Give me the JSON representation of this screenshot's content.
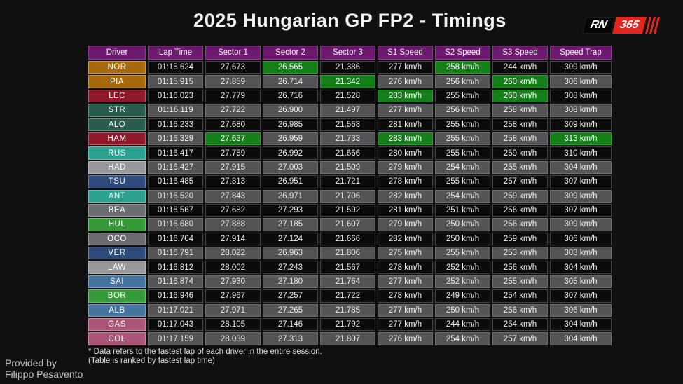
{
  "title": "2025 Hungarian GP FP2 - Timings",
  "logo": {
    "left_text": "RN",
    "right_text": "365",
    "accent_color": "#E2261F"
  },
  "footnote": {
    "line1": "* Data refers to the fastest lap of each driver in the entire session.",
    "line2": "(Table is ranked by fastest lap time)"
  },
  "credit": {
    "line1": "Provided by",
    "line2": "Filippo Pesavento"
  },
  "colors": {
    "background": "#101011",
    "header_purple": "#6D1A70",
    "row_dark": "#0B0B0C",
    "row_gray": "#545457",
    "best_green": "#15801A"
  },
  "chart_data": {
    "type": "table",
    "title": "2025 Hungarian GP FP2 - Timings",
    "columns": [
      "Driver",
      "Lap Time",
      "Sector 1",
      "Sector 2",
      "Sector 3",
      "S1 Speed",
      "S2 Speed",
      "S3 Speed",
      "Speed Trap"
    ],
    "column_keys": [
      "lap-time",
      "sector-1",
      "sector-2",
      "sector-3",
      "s1-speed",
      "s2-speed",
      "s3-speed",
      "speed-trap"
    ],
    "best_highlight_color": "#15801A",
    "rows": [
      {
        "driver": "NOR",
        "team_color": "#A8690A",
        "values": [
          "01:15.624",
          "27.673",
          "26.565",
          "21.386",
          "277 km/h",
          "258 km/h",
          "244 km/h",
          "309 km/h"
        ],
        "best_cells": [
          2,
          5
        ]
      },
      {
        "driver": "PIA",
        "team_color": "#A8690A",
        "values": [
          "01:15.915",
          "27.859",
          "26.714",
          "21.342",
          "276 km/h",
          "256 km/h",
          "260 km/h",
          "306 km/h"
        ],
        "best_cells": [
          3,
          6
        ]
      },
      {
        "driver": "LEC",
        "team_color": "#91172A",
        "values": [
          "01:16.023",
          "27.779",
          "26.716",
          "21.528",
          "283 km/h",
          "255 km/h",
          "260 km/h",
          "308 km/h"
        ],
        "best_cells": [
          4,
          6
        ]
      },
      {
        "driver": "STR",
        "team_color": "#285C4D",
        "values": [
          "01:16.119",
          "27.722",
          "26.900",
          "21.497",
          "277 km/h",
          "256 km/h",
          "258 km/h",
          "308 km/h"
        ],
        "best_cells": []
      },
      {
        "driver": "ALO",
        "team_color": "#285C4D",
        "values": [
          "01:16.233",
          "27.680",
          "26.985",
          "21.568",
          "281 km/h",
          "255 km/h",
          "258 km/h",
          "309 km/h"
        ],
        "best_cells": []
      },
      {
        "driver": "HAM",
        "team_color": "#91172A",
        "values": [
          "01:16.329",
          "27.637",
          "26.959",
          "21.733",
          "283 km/h",
          "255 km/h",
          "258 km/h",
          "313 km/h"
        ],
        "best_cells": [
          1,
          4,
          7
        ]
      },
      {
        "driver": "RUS",
        "team_color": "#2BA18F",
        "values": [
          "01:16.417",
          "27.759",
          "26.992",
          "21.666",
          "280 km/h",
          "255 km/h",
          "259 km/h",
          "310 km/h"
        ],
        "best_cells": []
      },
      {
        "driver": "HAD",
        "team_color": "#98989A",
        "values": [
          "01:16.427",
          "27.915",
          "27.003",
          "21.509",
          "279 km/h",
          "254 km/h",
          "255 km/h",
          "304 km/h"
        ],
        "best_cells": []
      },
      {
        "driver": "TSU",
        "team_color": "#2F4B7C",
        "values": [
          "01:16.485",
          "27.813",
          "26.951",
          "21.721",
          "278 km/h",
          "255 km/h",
          "257 km/h",
          "307 km/h"
        ],
        "best_cells": []
      },
      {
        "driver": "ANT",
        "team_color": "#2BA18F",
        "values": [
          "01:16.520",
          "27.843",
          "26.971",
          "21.706",
          "282 km/h",
          "254 km/h",
          "259 km/h",
          "309 km/h"
        ],
        "best_cells": []
      },
      {
        "driver": "BEA",
        "team_color": "#6B6D70",
        "values": [
          "01:16.567",
          "27.682",
          "27.293",
          "21.592",
          "281 km/h",
          "251 km/h",
          "256 km/h",
          "307 km/h"
        ],
        "best_cells": []
      },
      {
        "driver": "HUL",
        "team_color": "#349B38",
        "values": [
          "01:16.680",
          "27.888",
          "27.185",
          "21.607",
          "279 km/h",
          "250 km/h",
          "256 km/h",
          "309 km/h"
        ],
        "best_cells": []
      },
      {
        "driver": "OCO",
        "team_color": "#6B6D70",
        "values": [
          "01:16.704",
          "27.914",
          "27.124",
          "21.666",
          "282 km/h",
          "250 km/h",
          "259 km/h",
          "306 km/h"
        ],
        "best_cells": []
      },
      {
        "driver": "VER",
        "team_color": "#2F4B7C",
        "values": [
          "01:16.791",
          "28.022",
          "26.963",
          "21.806",
          "275 km/h",
          "255 km/h",
          "253 km/h",
          "303 km/h"
        ],
        "best_cells": []
      },
      {
        "driver": "LAW",
        "team_color": "#98989A",
        "values": [
          "01:16.812",
          "28.002",
          "27.243",
          "21.567",
          "278 km/h",
          "252 km/h",
          "256 km/h",
          "304 km/h"
        ],
        "best_cells": []
      },
      {
        "driver": "SAI",
        "team_color": "#43739E",
        "values": [
          "01:16.874",
          "27.930",
          "27.180",
          "21.764",
          "277 km/h",
          "252 km/h",
          "255 km/h",
          "305 km/h"
        ],
        "best_cells": []
      },
      {
        "driver": "BOR",
        "team_color": "#349B38",
        "values": [
          "01:16.946",
          "27.967",
          "27.257",
          "21.722",
          "278 km/h",
          "249 km/h",
          "254 km/h",
          "307 km/h"
        ],
        "best_cells": []
      },
      {
        "driver": "ALB",
        "team_color": "#43739E",
        "values": [
          "01:17.021",
          "27.971",
          "27.265",
          "21.785",
          "277 km/h",
          "250 km/h",
          "256 km/h",
          "306 km/h"
        ],
        "best_cells": []
      },
      {
        "driver": "GAS",
        "team_color": "#AA5578",
        "values": [
          "01:17.043",
          "28.105",
          "27.146",
          "21.792",
          "277 km/h",
          "244 km/h",
          "254 km/h",
          "304 km/h"
        ],
        "best_cells": []
      },
      {
        "driver": "COL",
        "team_color": "#AA5578",
        "values": [
          "01:17.159",
          "28.039",
          "27.313",
          "21.807",
          "276 km/h",
          "254 km/h",
          "257 km/h",
          "304 km/h"
        ],
        "best_cells": []
      }
    ]
  }
}
